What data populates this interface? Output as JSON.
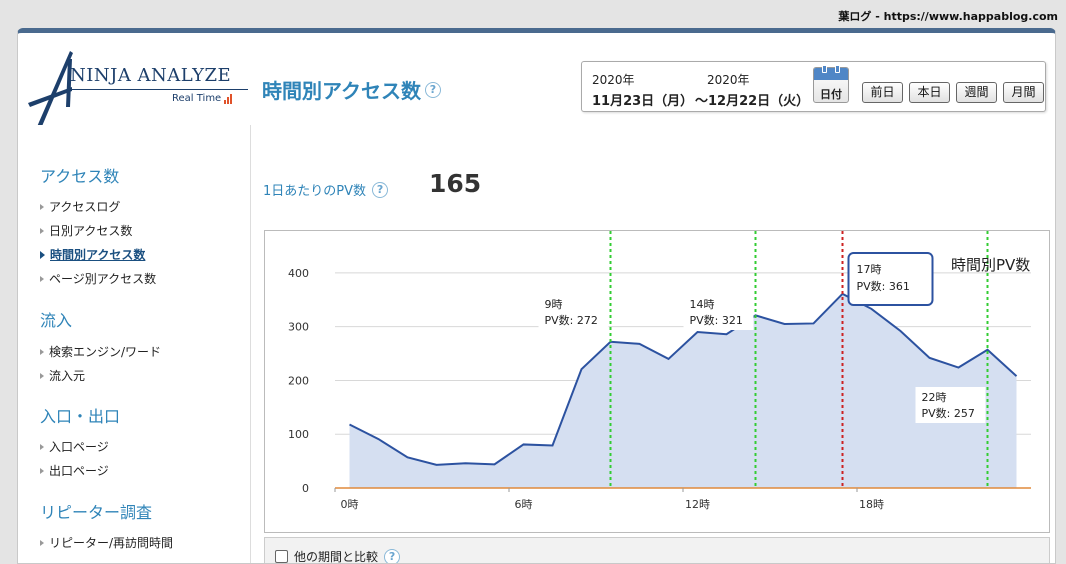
{
  "site_credit": "葉ログ - https://www.happablog.com",
  "logo": {
    "brand": "NINJA ANALYZE",
    "tagline": "Real Time"
  },
  "header": {
    "title": "時間別アクセス数"
  },
  "date_range": {
    "start_year": "2020年",
    "start_date": "11月23日（月）",
    "end_year": "2020年",
    "end_date": "〜12月22日（火）",
    "calendar_label": "日付"
  },
  "period_buttons": [
    "前日",
    "本日",
    "週間",
    "月間"
  ],
  "sidebar": {
    "sections": [
      {
        "title": "アクセス数",
        "items": [
          "アクセスログ",
          "日別アクセス数",
          "時間別アクセス数",
          "ページ別アクセス数"
        ]
      },
      {
        "title": "流入",
        "items": [
          "検索エンジン/ワード",
          "流入元"
        ]
      },
      {
        "title": "入口・出口",
        "items": [
          "入口ページ",
          "出口ページ"
        ]
      },
      {
        "title": "リピーター調査",
        "items": [
          "リピーター/再訪問時間"
        ]
      }
    ],
    "active_item": "時間別アクセス数"
  },
  "summary": {
    "label": "1日あたりのPV数",
    "value": "165"
  },
  "chart_data": {
    "type": "area",
    "title": "時間別PV数",
    "x": [
      0,
      1,
      2,
      3,
      4,
      5,
      6,
      7,
      8,
      9,
      10,
      11,
      12,
      13,
      14,
      15,
      16,
      17,
      18,
      19,
      20,
      21,
      22,
      23
    ],
    "x_tick_labels": [
      "0時",
      "6時",
      "12時",
      "18時"
    ],
    "x_ticks": [
      0,
      6,
      12,
      18
    ],
    "values": [
      118,
      91,
      57,
      43,
      46,
      44,
      81,
      79,
      221,
      272,
      268,
      240,
      290,
      286,
      321,
      305,
      306,
      361,
      333,
      292,
      242,
      224,
      257,
      208
    ],
    "ylim": [
      0,
      450
    ],
    "y_ticks": [
      0,
      100,
      200,
      300,
      400
    ],
    "grid": true,
    "colors": {
      "line": "#2c52a0",
      "fill": "#d5dff1",
      "marker_green": "#33cc33",
      "marker_red": "#cc2222",
      "baseline": "#e08a3c"
    },
    "annotations": [
      {
        "hour": 9,
        "line": "9時",
        "text": "PV数: 272",
        "marker": "green"
      },
      {
        "hour": 14,
        "line": "14時",
        "text": "PV数: 321",
        "marker": "green"
      },
      {
        "hour": 17,
        "line": "17時",
        "text": "PV数: 361",
        "marker": "red",
        "highlight": true
      },
      {
        "hour": 22,
        "line": "22時",
        "text": "PV数: 257",
        "marker": "green"
      }
    ]
  },
  "compare": {
    "label": "他の期間と比較"
  }
}
